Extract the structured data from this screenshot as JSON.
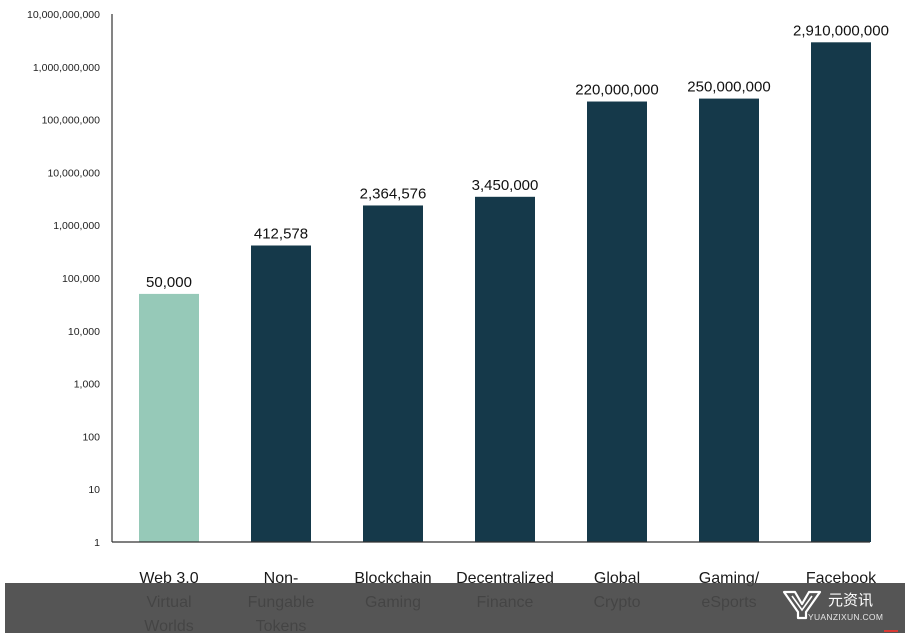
{
  "chart_data": {
    "type": "bar",
    "yscale": "log",
    "ylim": [
      1,
      10000000000
    ],
    "ytick_values": [
      1,
      10,
      100,
      1000,
      10000,
      100000,
      1000000,
      10000000,
      100000000,
      1000000000,
      10000000000
    ],
    "ytick_labels": [
      "1",
      "10",
      "100",
      "1,000",
      "10,000",
      "100,000",
      "1,000,000",
      "10,000,000",
      "100,000,000",
      "1,000,000,000",
      "10,000,000,000"
    ],
    "categories": [
      [
        "Web 3.0",
        "Virtual",
        "Worlds"
      ],
      [
        "Non-",
        "Fungable",
        "Tokens"
      ],
      [
        "Blockchain",
        "Gaming"
      ],
      [
        "Decentralized",
        "Finance"
      ],
      [
        "Global",
        "Crypto"
      ],
      [
        "Gaming/",
        "eSports"
      ],
      [
        "Facebook"
      ]
    ],
    "values": [
      50000,
      412578,
      2364576,
      3450000,
      220000000,
      250000000,
      2910000000
    ],
    "data_labels": [
      "50,000",
      "412,578",
      "2,364,576",
      "3,450,000",
      "220,000,000",
      "250,000,000",
      "2,910,000,000"
    ],
    "colors": [
      "#96c9b8",
      "#15394a",
      "#15394a",
      "#15394a",
      "#15394a",
      "#15394a",
      "#15394a"
    ],
    "grid": false,
    "legend": "none",
    "title": "",
    "xlabel": "",
    "ylabel": ""
  },
  "watermark": {
    "text": "元资讯",
    "subtext": "YUANZIXUN.COM",
    "icon": "yuanzixun-logo-icon"
  }
}
